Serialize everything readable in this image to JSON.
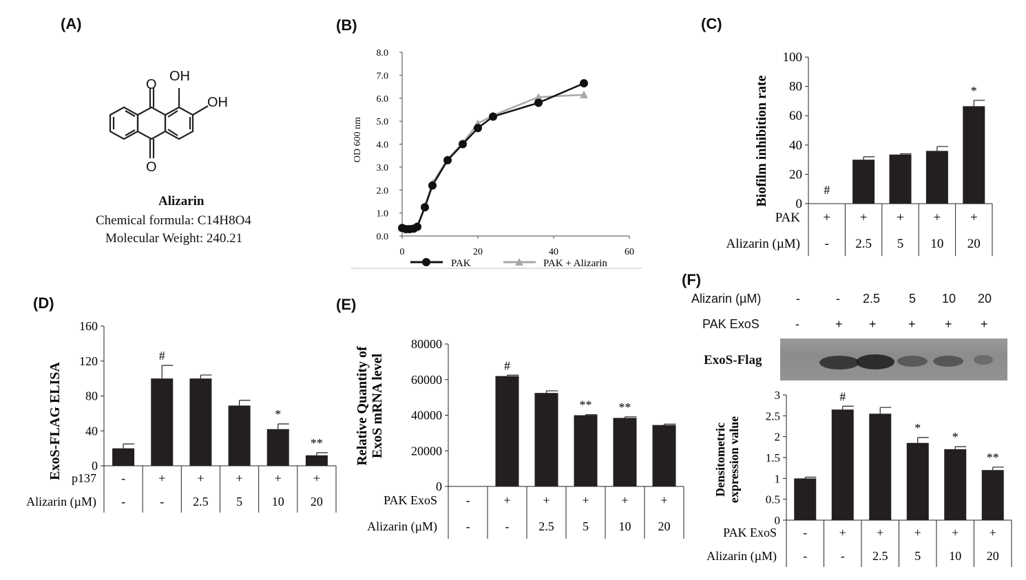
{
  "panelA": {
    "label": "(A)",
    "oh1": "OH",
    "oh2": "OH",
    "o1": "O",
    "o2": "O",
    "name": "Alizarin",
    "formula": "Chemical formula: C14H8O4",
    "weight": "Molecular Weight: 240.21"
  },
  "panelB": {
    "label": "(B)",
    "ylabel": "OD 600 nm",
    "legend1": "PAK",
    "legend2": "PAK + Alizarin"
  },
  "panelC": {
    "label": "(C)"
  },
  "panelD": {
    "label": "(D)"
  },
  "panelE": {
    "label": "(E)"
  },
  "panelF": {
    "label": "(F)",
    "row1_label": "Alizarin (µM)",
    "row1": [
      "-",
      "-",
      "2.5",
      "5",
      "10",
      "20"
    ],
    "row2_label": "PAK ExoS",
    "row2": [
      "-",
      "+",
      "+",
      "+",
      "+",
      "+"
    ],
    "blot_label": "ExoS-Flag"
  },
  "colors": {
    "bar": "#231f20",
    "pak_line": "#111111",
    "aliz_line": "#a8a8a8"
  },
  "chart_data": [
    {
      "id": "B",
      "type": "line",
      "title": "",
      "xlabel": "",
      "ylabel": "OD 600 nm",
      "xlim": [
        0,
        60
      ],
      "ylim": [
        0,
        8
      ],
      "xticks": [
        "0",
        "20",
        "40",
        "60"
      ],
      "yticks": [
        "0.0",
        "1.0",
        "2.0",
        "3.0",
        "4.0",
        "5.0",
        "6.0",
        "7.0",
        "8.0"
      ],
      "legend": "bottom",
      "series": [
        {
          "name": "PAK",
          "x": [
            0,
            1,
            2,
            3,
            4,
            6,
            8,
            12,
            16,
            20,
            24,
            36,
            48
          ],
          "y": [
            0.35,
            0.3,
            0.3,
            0.32,
            0.4,
            1.25,
            2.2,
            3.3,
            4.0,
            4.7,
            5.2,
            5.8,
            6.65
          ]
        },
        {
          "name": "PAK + Alizarin",
          "x": [
            0,
            1,
            2,
            3,
            4,
            6,
            8,
            12,
            16,
            20,
            24,
            36,
            48
          ],
          "y": [
            0.35,
            0.3,
            0.3,
            0.32,
            0.45,
            1.3,
            2.3,
            3.35,
            4.05,
            4.9,
            5.25,
            6.05,
            6.15
          ]
        }
      ]
    },
    {
      "id": "C",
      "type": "bar",
      "title": "",
      "ylabel": "Biofilm inhibition rate",
      "ylim": [
        0,
        100
      ],
      "yticks": [
        "0",
        "20",
        "40",
        "60",
        "80",
        "100"
      ],
      "values": [
        0,
        30,
        33.5,
        36,
        66.5
      ],
      "errors": [
        0,
        2,
        0.5,
        3,
        4
      ],
      "annotations": [
        "#",
        "",
        "",
        "",
        "*"
      ],
      "rows": [
        {
          "label": "PAK",
          "cells": [
            "+",
            "+",
            "+",
            "+",
            "+"
          ]
        },
        {
          "label": "Alizarin (µM)",
          "cells": [
            "-",
            "2.5",
            "5",
            "10",
            "20"
          ]
        }
      ]
    },
    {
      "id": "D",
      "type": "bar",
      "title": "",
      "ylabel": "ExoS-FLAG ELISA",
      "ylim": [
        0,
        160
      ],
      "yticks": [
        "0",
        "40",
        "80",
        "120",
        "160"
      ],
      "values": [
        20,
        100,
        100,
        69,
        42,
        12
      ],
      "errors": [
        5,
        15,
        4,
        6,
        6,
        3
      ],
      "annotations": [
        "",
        "#",
        "",
        "",
        "*",
        "**"
      ],
      "rows": [
        {
          "label": "p137",
          "cells": [
            "-",
            "+",
            "+",
            "+",
            "+",
            "+"
          ]
        },
        {
          "label": "Alizarin (µM)",
          "cells": [
            "-",
            "-",
            "2.5",
            "5",
            "10",
            "20"
          ]
        }
      ]
    },
    {
      "id": "E",
      "type": "bar",
      "title": "",
      "ylabel_line1": "Relative Quantity of",
      "ylabel_line2": "ExoS mRNA level",
      "ylim": [
        0,
        80000
      ],
      "yticks": [
        "0",
        "20000",
        "40000",
        "60000",
        "80000"
      ],
      "values": [
        0,
        62000,
        52500,
        40000,
        38500,
        34500
      ],
      "errors": [
        0,
        500,
        1200,
        300,
        600,
        500
      ],
      "annotations": [
        "",
        "#",
        "",
        "**",
        "**",
        ""
      ],
      "rows": [
        {
          "label": "PAK ExoS",
          "cells": [
            "-",
            "+",
            "+",
            "+",
            "+",
            "+"
          ]
        },
        {
          "label": "Alizarin (µM)",
          "cells": [
            "-",
            "-",
            "2.5",
            "5",
            "10",
            "20"
          ]
        }
      ]
    },
    {
      "id": "F",
      "type": "bar",
      "title": "",
      "ylabel_line1": "Densitometric",
      "ylabel_line2": "expression value",
      "ylim": [
        0,
        3
      ],
      "yticks": [
        "0",
        "0.5",
        "1",
        "1.5",
        "2",
        "2.5",
        "3"
      ],
      "values": [
        1.0,
        2.65,
        2.55,
        1.85,
        1.7,
        1.2
      ],
      "errors": [
        0.03,
        0.08,
        0.15,
        0.13,
        0.06,
        0.07
      ],
      "annotations": [
        "",
        "#",
        "",
        "*",
        "*",
        "**"
      ],
      "rows": [
        {
          "label": "PAK ExoS",
          "cells": [
            "-",
            "+",
            "+",
            "+",
            "+",
            "+"
          ]
        },
        {
          "label": "Alizarin (µM)",
          "cells": [
            "-",
            "-",
            "2.5",
            "5",
            "10",
            "20"
          ]
        }
      ]
    }
  ]
}
